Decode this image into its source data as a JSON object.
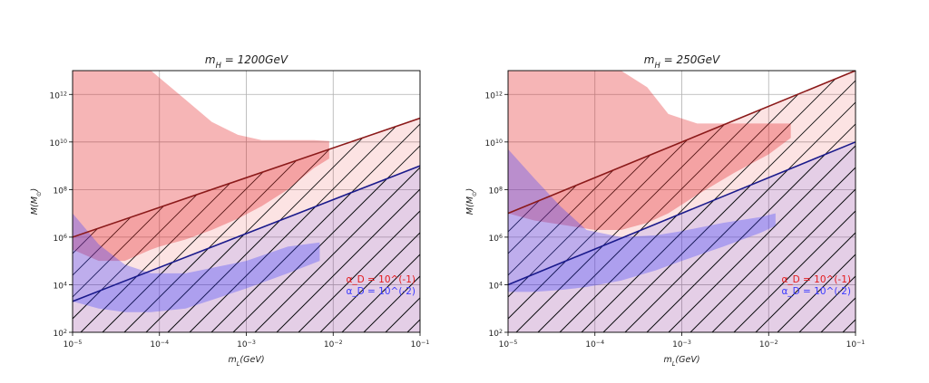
{
  "chart_data": [
    {
      "type": "area",
      "title": "m_H = 1200GeV",
      "title_mathtext": [
        "m",
        "H",
        " = 1200GeV"
      ],
      "xlabel": "m_L(GeV)",
      "xlabel_parts": [
        "m",
        "L",
        "(GeV)"
      ],
      "ylabel": "M(M_⊙)",
      "ylabel_parts": [
        "M(M",
        "⊙",
        ")"
      ],
      "xscale": "log",
      "yscale": "log",
      "xlim": [
        1e-05,
        0.1
      ],
      "ylim": [
        100,
        10000000000000.0
      ],
      "grid": true,
      "legend_position": "lower-right",
      "x_ticks": [
        {
          "value": 1e-05,
          "base": "10",
          "exp": "−5"
        },
        {
          "value": 0.0001,
          "base": "10",
          "exp": "−4"
        },
        {
          "value": 0.001,
          "base": "10",
          "exp": "−3"
        },
        {
          "value": 0.01,
          "base": "10",
          "exp": "−2"
        },
        {
          "value": 0.1,
          "base": "10",
          "exp": "−1"
        }
      ],
      "y_ticks": [
        {
          "value": 100,
          "base": "10",
          "exp": "2"
        },
        {
          "value": 10000,
          "base": "10",
          "exp": "4"
        },
        {
          "value": 1000000,
          "base": "10",
          "exp": "6"
        },
        {
          "value": 100000000,
          "base": "10",
          "exp": "8"
        },
        {
          "value": 10000000000,
          "base": "10",
          "exp": "10"
        },
        {
          "value": 1000000000000,
          "base": "10",
          "exp": "12"
        }
      ],
      "series": [
        {
          "name": "α_D = 10^(-1)",
          "color": "#e31a1c",
          "boundary_line": {
            "x": [
              1e-05,
              0.1
            ],
            "y": [
              1000000,
              100000000000.0
            ],
            "color": "#8b1a1a"
          },
          "hatched_region": "below boundary line",
          "allowed_region": [
            {
              "x": 1e-05,
              "y_low": 300000,
              "y_high": 10000000000000.0
            },
            {
              "x": 2e-05,
              "y_low": 100000,
              "y_high": 10000000000000.0
            },
            {
              "x": 4e-05,
              "y_low": 100000,
              "y_high": 10000000000000.0
            },
            {
              "x": 8e-05,
              "y_low": 300000,
              "y_high": 10000000000000.0
            },
            {
              "x": 0.0001,
              "y_low": 400000,
              "y_high": 5000000000000
            },
            {
              "x": 0.0002,
              "y_low": 800000,
              "y_high": 600000000000
            },
            {
              "x": 0.0004,
              "y_low": 2000000,
              "y_high": 70000000000
            },
            {
              "x": 0.0008,
              "y_low": 6000000,
              "y_high": 20000000000
            },
            {
              "x": 0.0015,
              "y_low": 20000000,
              "y_high": 12000000000
            },
            {
              "x": 0.003,
              "y_low": 100000000,
              "y_high": 12000000000
            },
            {
              "x": 0.006,
              "y_low": 800000000,
              "y_high": 12000000000
            },
            {
              "x": 0.009,
              "y_low": 2000000000,
              "y_high": 11000000000
            }
          ]
        },
        {
          "name": "α_D = 10^(-2)",
          "color": "#3b3bff",
          "boundary_line": {
            "x": [
              1e-05,
              0.1
            ],
            "y": [
              2000,
              1000000000
            ],
            "color": "#1a1a8b"
          },
          "hatched_region": "below boundary line",
          "allowed_region": [
            {
              "x": 1e-05,
              "y_low": 2000,
              "y_high": 10000000
            },
            {
              "x": 2e-05,
              "y_low": 1000,
              "y_high": 500000
            },
            {
              "x": 4e-05,
              "y_low": 700,
              "y_high": 70000
            },
            {
              "x": 8e-05,
              "y_low": 700,
              "y_high": 30000
            },
            {
              "x": 0.0002,
              "y_low": 1000,
              "y_high": 30000
            },
            {
              "x": 0.0005,
              "y_low": 3000,
              "y_high": 60000
            },
            {
              "x": 0.001,
              "y_low": 7000,
              "y_high": 100000
            },
            {
              "x": 0.003,
              "y_low": 30000,
              "y_high": 400000
            },
            {
              "x": 0.007,
              "y_low": 100000,
              "y_high": 600000
            }
          ]
        }
      ]
    },
    {
      "type": "area",
      "title": "m_H = 250GeV",
      "title_mathtext": [
        "m",
        "H",
        " = 250GeV"
      ],
      "xlabel": "m_L(GeV)",
      "xlabel_parts": [
        "m",
        "L",
        "(GeV)"
      ],
      "ylabel": "M(M_⊙)",
      "ylabel_parts": [
        "M(M",
        "⊙",
        ")"
      ],
      "xscale": "log",
      "yscale": "log",
      "xlim": [
        1e-05,
        0.1
      ],
      "ylim": [
        100,
        10000000000000.0
      ],
      "grid": true,
      "legend_position": "lower-right",
      "x_ticks": [
        {
          "value": 1e-05,
          "base": "10",
          "exp": "−5"
        },
        {
          "value": 0.0001,
          "base": "10",
          "exp": "−4"
        },
        {
          "value": 0.001,
          "base": "10",
          "exp": "−3"
        },
        {
          "value": 0.01,
          "base": "10",
          "exp": "−2"
        },
        {
          "value": 0.1,
          "base": "10",
          "exp": "−1"
        }
      ],
      "y_ticks": [
        {
          "value": 100,
          "base": "10",
          "exp": "2"
        },
        {
          "value": 10000,
          "base": "10",
          "exp": "4"
        },
        {
          "value": 1000000,
          "base": "10",
          "exp": "6"
        },
        {
          "value": 100000000,
          "base": "10",
          "exp": "8"
        },
        {
          "value": 10000000000,
          "base": "10",
          "exp": "10"
        },
        {
          "value": 1000000000000,
          "base": "10",
          "exp": "12"
        }
      ],
      "series": [
        {
          "name": "α_D = 10^(-1)",
          "color": "#e31a1c",
          "boundary_line": {
            "x": [
              1e-05,
              0.1
            ],
            "y": [
              10000000,
              10000000000000.0
            ],
            "color": "#8b1a1a"
          },
          "hatched_region": "below boundary line",
          "allowed_region": [
            {
              "x": 1e-05,
              "y_low": 10000000,
              "y_high": 10000000000000.0
            },
            {
              "x": 2e-05,
              "y_low": 5000000,
              "y_high": 10000000000000.0
            },
            {
              "x": 5e-05,
              "y_low": 3000000,
              "y_high": 10000000000000.0
            },
            {
              "x": 0.0001,
              "y_low": 2000000,
              "y_high": 10000000000000.0
            },
            {
              "x": 0.0002,
              "y_low": 2000000,
              "y_high": 10000000000000.0
            },
            {
              "x": 0.0004,
              "y_low": 4000000,
              "y_high": 2000000000000
            },
            {
              "x": 0.0007,
              "y_low": 10000000,
              "y_high": 150000000000
            },
            {
              "x": 0.0015,
              "y_low": 60000000,
              "y_high": 60000000000
            },
            {
              "x": 0.004,
              "y_low": 500000000,
              "y_high": 60000000000
            },
            {
              "x": 0.01,
              "y_low": 3000000000,
              "y_high": 60000000000
            },
            {
              "x": 0.018,
              "y_low": 15000000000,
              "y_high": 60000000000
            }
          ]
        },
        {
          "name": "α_D = 10^(-2)",
          "color": "#3b3bff",
          "boundary_line": {
            "x": [
              1e-05,
              0.1
            ],
            "y": [
              10000,
              10000000000
            ],
            "color": "#1a1a8b"
          },
          "hatched_region": "below boundary line",
          "allowed_region": [
            {
              "x": 1e-05,
              "y_low": 5000,
              "y_high": 5000000000
            },
            {
              "x": 2e-05,
              "y_low": 5000,
              "y_high": 300000000
            },
            {
              "x": 4e-05,
              "y_low": 6000,
              "y_high": 20000000
            },
            {
              "x": 8e-05,
              "y_low": 8000,
              "y_high": 2000000
            },
            {
              "x": 0.0002,
              "y_low": 15000,
              "y_high": 1000000
            },
            {
              "x": 0.0005,
              "y_low": 40000,
              "y_high": 1200000
            },
            {
              "x": 0.001,
              "y_low": 100000,
              "y_high": 1800000
            },
            {
              "x": 0.003,
              "y_low": 400000,
              "y_high": 4000000
            },
            {
              "x": 0.008,
              "y_low": 1500000,
              "y_high": 7000000
            },
            {
              "x": 0.012,
              "y_low": 3000000,
              "y_high": 10000000
            }
          ]
        }
      ]
    }
  ]
}
